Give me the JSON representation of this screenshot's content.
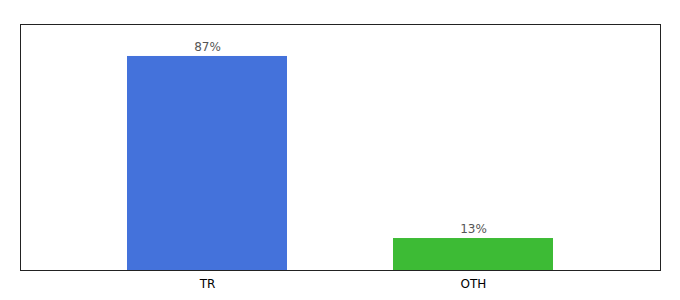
{
  "chart_data": {
    "type": "bar",
    "categories": [
      "TR",
      "OTH"
    ],
    "values": [
      87,
      13
    ],
    "value_labels": [
      "87%",
      "13%"
    ],
    "colors": [
      "#4472db",
      "#3dbb35"
    ],
    "ylim": [
      0,
      100
    ],
    "data_labels": true,
    "tick_labels": "x",
    "grid": false
  }
}
